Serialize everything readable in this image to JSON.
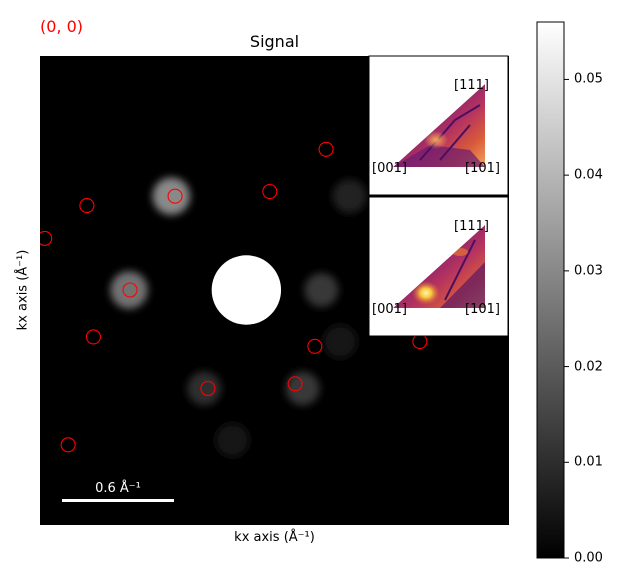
{
  "corner_label": "(0, 0)",
  "colors": {
    "corner_label": "#ff0000",
    "markers": "#ff0000",
    "scalebar": "#ffffff"
  },
  "chart_data": [
    {
      "type": "heatmap",
      "title": "Signal",
      "xlabel": "kx axis (Å⁻¹)",
      "ylabel": "kx axis (Å⁻¹)",
      "colormap": "gray",
      "colorbar": {
        "range": [
          0,
          0.056
        ],
        "ticks": [
          "0.00",
          "0.01",
          "0.02",
          "0.03",
          "0.04",
          "0.05"
        ]
      },
      "scalebar": {
        "label": "0.6 Å⁻¹"
      },
      "spots": [
        {
          "kx": 0.0,
          "ky": 0.0,
          "intensity": 0.056,
          "radius": 0.37
        },
        {
          "kx": -0.8,
          "ky": 1.0,
          "intensity": 0.03,
          "radius": 0.2
        },
        {
          "kx": -1.25,
          "ky": 0.0,
          "intensity": 0.025,
          "radius": 0.2
        },
        {
          "kx": 0.6,
          "ky": -1.05,
          "intensity": 0.012,
          "radius": 0.18
        },
        {
          "kx": -0.45,
          "ky": -1.05,
          "intensity": 0.01,
          "radius": 0.18
        },
        {
          "kx": 0.8,
          "ky": 0.0,
          "intensity": 0.012,
          "radius": 0.18
        },
        {
          "kx": 1.1,
          "ky": 1.0,
          "intensity": 0.008,
          "radius": 0.18
        },
        {
          "kx": -0.15,
          "ky": -1.6,
          "intensity": 0.005,
          "radius": 0.18
        },
        {
          "kx": 1.0,
          "ky": -0.55,
          "intensity": 0.005,
          "radius": 0.18
        }
      ],
      "markers": [
        {
          "kx": -1.7,
          "ky": 0.9
        },
        {
          "kx": -0.76,
          "ky": 1.0
        },
        {
          "kx": 0.25,
          "ky": 1.05
        },
        {
          "kx": -2.15,
          "ky": 0.55
        },
        {
          "kx": -1.24,
          "ky": 0.0
        },
        {
          "kx": -1.63,
          "ky": -0.5
        },
        {
          "kx": 0.73,
          "ky": -0.6
        },
        {
          "kx": 1.85,
          "ky": -0.55
        },
        {
          "kx": -0.41,
          "ky": -1.05
        },
        {
          "kx": 0.52,
          "ky": -1.0
        },
        {
          "kx": -1.9,
          "ky": -1.65
        },
        {
          "kx": 0.85,
          "ky": 1.5
        }
      ]
    },
    {
      "type": "heatmap",
      "subtype": "inverse-pole-figure",
      "colormap": "inferno",
      "labels": [
        "[111]",
        "[001]",
        "[101]"
      ],
      "hotspots": [
        {
          "position": "center",
          "intensity": 0.5
        }
      ]
    },
    {
      "type": "heatmap",
      "subtype": "inverse-pole-figure",
      "colormap": "inferno",
      "labels": [
        "[111]",
        "[001]",
        "[101]"
      ],
      "hotspots": [
        {
          "position": "lower-left",
          "intensity": 1.0
        }
      ]
    }
  ]
}
